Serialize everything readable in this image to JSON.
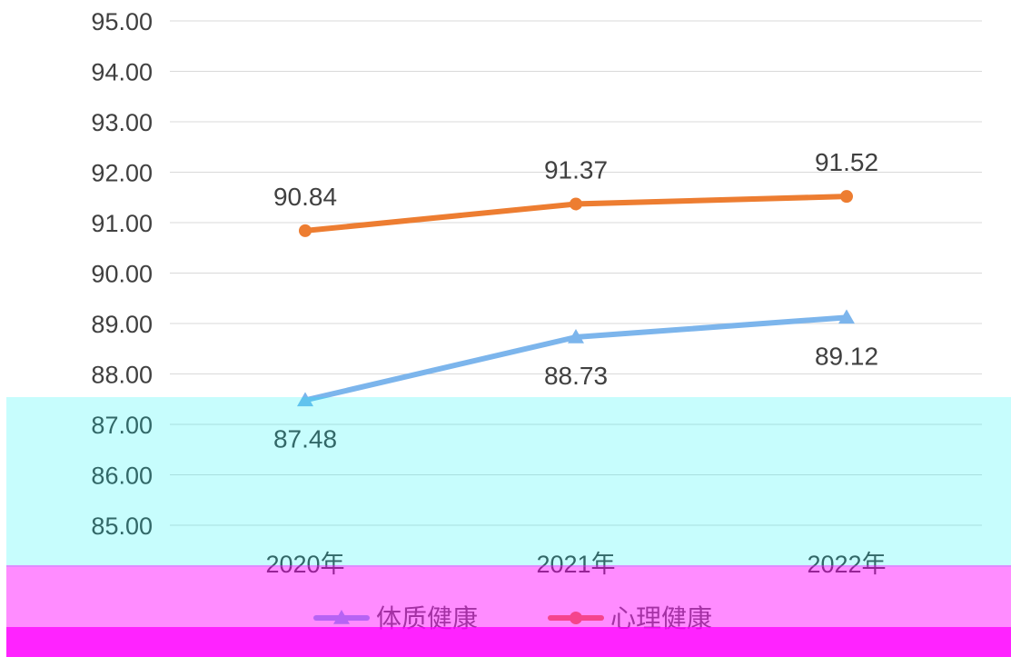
{
  "chart_data": {
    "type": "line",
    "categories": [
      "2020年",
      "2021年",
      "2022年"
    ],
    "series": [
      {
        "name": "体质健康",
        "values": [
          87.48,
          88.73,
          89.12
        ],
        "color": "#7cb5ec",
        "marker": "triangle"
      },
      {
        "name": "心理健康",
        "values": [
          90.84,
          91.37,
          91.52
        ],
        "color": "#ed7d31",
        "marker": "circle"
      }
    ],
    "ylim": [
      85,
      95
    ],
    "yticks": [
      "85.00",
      "86.00",
      "87.00",
      "88.00",
      "89.00",
      "90.00",
      "91.00",
      "92.00",
      "93.00",
      "94.00",
      "95.00"
    ],
    "grid": true,
    "legend_position": "bottom",
    "title": "",
    "xlabel": "",
    "ylabel": ""
  }
}
